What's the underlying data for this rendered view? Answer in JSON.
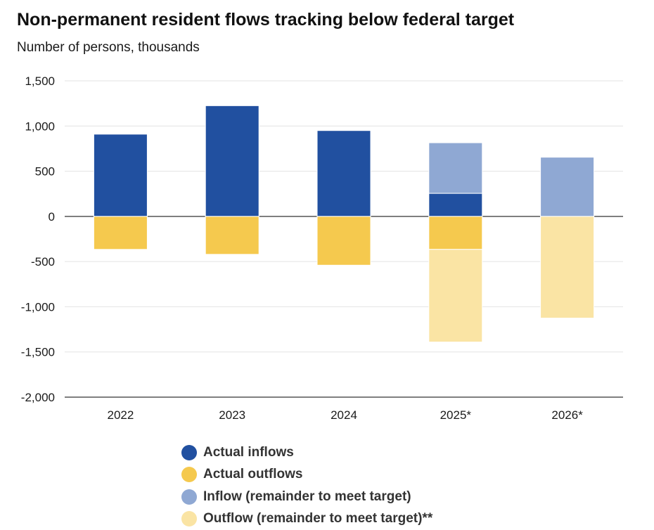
{
  "title": "Non-permanent resident flows tracking below federal target",
  "subtitle": "Number of persons, thousands",
  "chart_data": {
    "type": "bar",
    "stacked": true,
    "categories": [
      "2022",
      "2023",
      "2024",
      "2025*",
      "2026*"
    ],
    "ylim": [
      -2000,
      1500
    ],
    "yticks": [
      1500,
      1000,
      500,
      0,
      -500,
      -1000,
      -1500,
      -2000
    ],
    "ytick_labels": [
      "1,500",
      "1,000",
      "500",
      "0",
      "-500",
      "-1,000",
      "-1,500",
      "-2,000"
    ],
    "grid": true,
    "legend_position": "bottom",
    "series": [
      {
        "name": "Actual inflows",
        "color": "#2150a0",
        "values": [
          910,
          1225,
          950,
          255,
          0
        ]
      },
      {
        "name": "Inflow (remainder to meet target)",
        "color": "#8fa8d3",
        "values": [
          0,
          0,
          0,
          560,
          655
        ]
      },
      {
        "name": "Actual outflows",
        "color": "#f5c94e",
        "values": [
          -365,
          -420,
          -540,
          -365,
          0
        ]
      },
      {
        "name": "Outflow (remainder to meet target)**",
        "color": "#fae4a4",
        "values": [
          0,
          0,
          0,
          -1025,
          -1125
        ]
      }
    ]
  },
  "legend": [
    {
      "label": "Actual inflows",
      "color": "#2150a0"
    },
    {
      "label": "Actual outflows",
      "color": "#f5c94e"
    },
    {
      "label": "Inflow (remainder to meet target)",
      "color": "#8fa8d3"
    },
    {
      "label": "Outflow (remainder to meet target)**",
      "color": "#fae4a4"
    }
  ]
}
